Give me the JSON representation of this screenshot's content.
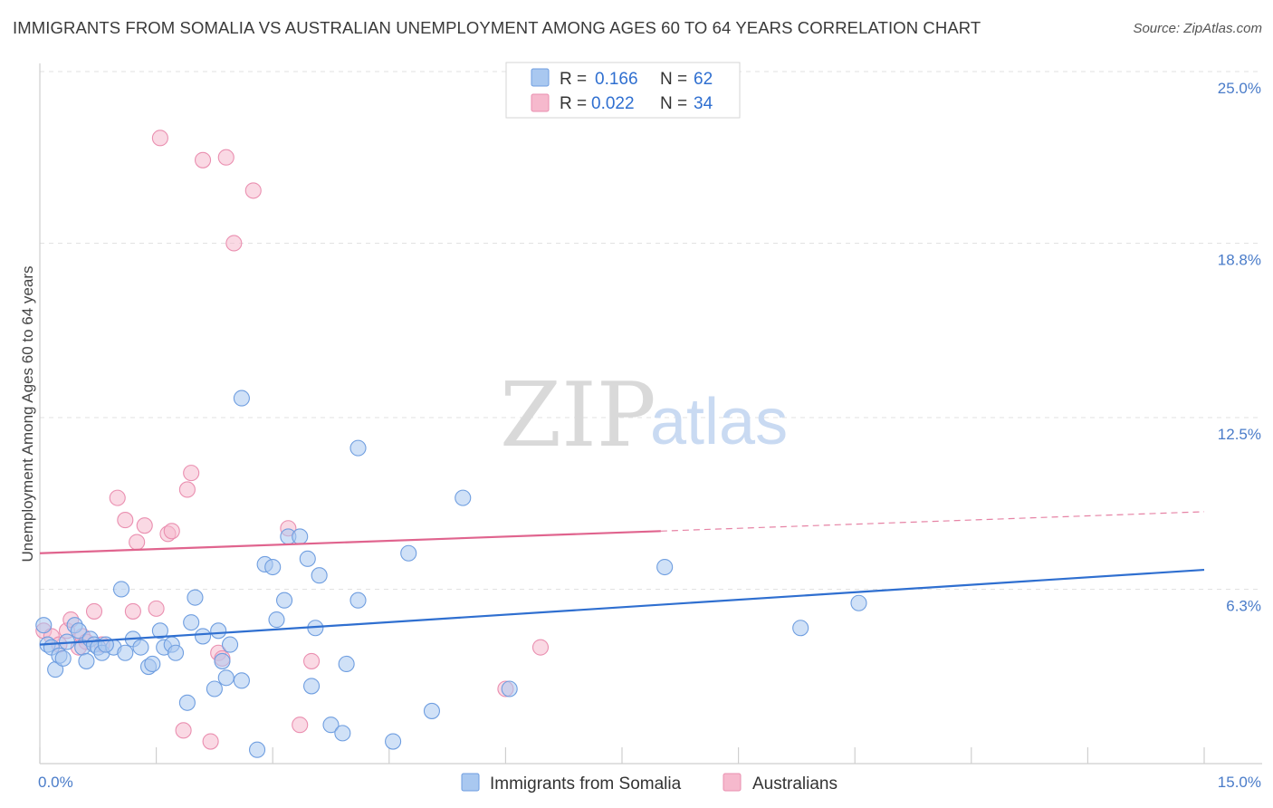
{
  "header": {
    "title": "IMMIGRANTS FROM SOMALIA VS AUSTRALIAN UNEMPLOYMENT AMONG AGES 60 TO 64 YEARS CORRELATION CHART",
    "source": "Source: ZipAtlas.com"
  },
  "watermark": {
    "part1": "ZIP",
    "part2": "atlas"
  },
  "colors": {
    "blue": "#a9c8f0",
    "blue_stroke": "#6f9ee0",
    "blue_line": "#2f6fd0",
    "pink": "#f6b9cd",
    "pink_stroke": "#ea8fb0",
    "pink_line": "#e0648e",
    "grid": "#e2e2e2",
    "tick_text": "#4a7cc9"
  },
  "legend": {
    "r_label": "R =",
    "n_label": "N =",
    "series1": {
      "r": "0.166",
      "n": "62"
    },
    "series2": {
      "r": "0.022",
      "n": "34"
    }
  },
  "chart_data": {
    "type": "scatter",
    "title": "IMMIGRANTS FROM SOMALIA VS AUSTRALIAN UNEMPLOYMENT AMONG AGES 60 TO 64 YEARS CORRELATION CHART",
    "xlabel": "",
    "ylabel": "Unemployment Among Ages 60 to 64 years",
    "xlim": [
      0,
      15
    ],
    "ylim": [
      0,
      25
    ],
    "x_tick_labels": [
      "0.0%",
      "15.0%"
    ],
    "y_ticks": [
      6.3,
      12.5,
      18.8,
      25.0
    ],
    "y_tick_labels": [
      "6.3%",
      "12.5%",
      "18.8%",
      "25.0%"
    ],
    "legend_entries": [
      "Immigrants from Somalia",
      "Australians"
    ],
    "series": [
      {
        "name": "Immigrants from Somalia",
        "r": 0.166,
        "n": 62,
        "trend": {
          "x": [
            0,
            15
          ],
          "y": [
            4.3,
            7.0
          ],
          "dashed_from": null
        },
        "points": [
          [
            0.05,
            5.0
          ],
          [
            0.1,
            4.3
          ],
          [
            0.15,
            4.2
          ],
          [
            0.2,
            3.4
          ],
          [
            0.25,
            3.9
          ],
          [
            0.3,
            3.8
          ],
          [
            0.35,
            4.4
          ],
          [
            0.45,
            5.0
          ],
          [
            0.5,
            4.8
          ],
          [
            0.55,
            4.2
          ],
          [
            0.6,
            3.7
          ],
          [
            0.65,
            4.5
          ],
          [
            0.7,
            4.3
          ],
          [
            0.75,
            4.2
          ],
          [
            0.8,
            4.0
          ],
          [
            0.95,
            4.2
          ],
          [
            1.05,
            6.3
          ],
          [
            1.1,
            4.0
          ],
          [
            1.2,
            4.5
          ],
          [
            1.3,
            4.2
          ],
          [
            1.4,
            3.5
          ],
          [
            1.45,
            3.6
          ],
          [
            1.55,
            4.8
          ],
          [
            1.6,
            4.2
          ],
          [
            1.7,
            4.3
          ],
          [
            1.75,
            4.0
          ],
          [
            1.9,
            2.2
          ],
          [
            1.95,
            5.1
          ],
          [
            2.0,
            6.0
          ],
          [
            2.1,
            4.6
          ],
          [
            2.25,
            2.7
          ],
          [
            2.3,
            4.8
          ],
          [
            2.35,
            3.7
          ],
          [
            2.4,
            3.1
          ],
          [
            2.45,
            4.3
          ],
          [
            2.6,
            13.2
          ],
          [
            2.6,
            3.0
          ],
          [
            2.8,
            0.5
          ],
          [
            2.9,
            7.2
          ],
          [
            3.0,
            7.1
          ],
          [
            3.05,
            5.2
          ],
          [
            3.15,
            5.9
          ],
          [
            3.2,
            8.2
          ],
          [
            3.35,
            8.2
          ],
          [
            3.45,
            7.4
          ],
          [
            3.5,
            2.8
          ],
          [
            3.55,
            4.9
          ],
          [
            3.6,
            6.8
          ],
          [
            3.75,
            1.4
          ],
          [
            3.9,
            1.1
          ],
          [
            3.95,
            3.6
          ],
          [
            4.1,
            11.4
          ],
          [
            4.1,
            5.9
          ],
          [
            4.55,
            0.8
          ],
          [
            4.75,
            7.6
          ],
          [
            5.05,
            1.9
          ],
          [
            5.45,
            9.6
          ],
          [
            6.05,
            2.7
          ],
          [
            8.05,
            7.1
          ],
          [
            9.8,
            4.9
          ],
          [
            10.55,
            5.8
          ],
          [
            0.85,
            4.3
          ]
        ]
      },
      {
        "name": "Australians",
        "r": 0.022,
        "n": 34,
        "trend": {
          "x": [
            0,
            15
          ],
          "y": [
            7.6,
            9.1
          ],
          "dashed_from": 8.0
        },
        "points": [
          [
            0.05,
            4.8
          ],
          [
            0.15,
            4.6
          ],
          [
            0.25,
            4.3
          ],
          [
            0.35,
            4.8
          ],
          [
            0.4,
            5.2
          ],
          [
            0.5,
            4.2
          ],
          [
            0.55,
            4.6
          ],
          [
            0.6,
            4.4
          ],
          [
            0.7,
            5.5
          ],
          [
            0.8,
            4.3
          ],
          [
            1.0,
            9.6
          ],
          [
            1.1,
            8.8
          ],
          [
            1.2,
            5.5
          ],
          [
            1.25,
            8.0
          ],
          [
            1.35,
            8.6
          ],
          [
            1.5,
            5.6
          ],
          [
            1.55,
            22.6
          ],
          [
            1.65,
            8.3
          ],
          [
            1.7,
            8.4
          ],
          [
            1.85,
            1.2
          ],
          [
            1.9,
            9.9
          ],
          [
            1.95,
            10.5
          ],
          [
            2.1,
            21.8
          ],
          [
            2.2,
            0.8
          ],
          [
            2.3,
            4.0
          ],
          [
            2.35,
            3.8
          ],
          [
            2.4,
            21.9
          ],
          [
            2.5,
            18.8
          ],
          [
            2.75,
            20.7
          ],
          [
            3.2,
            8.5
          ],
          [
            3.35,
            1.4
          ],
          [
            3.5,
            3.7
          ],
          [
            6.0,
            2.7
          ],
          [
            6.45,
            4.2
          ]
        ]
      }
    ]
  }
}
